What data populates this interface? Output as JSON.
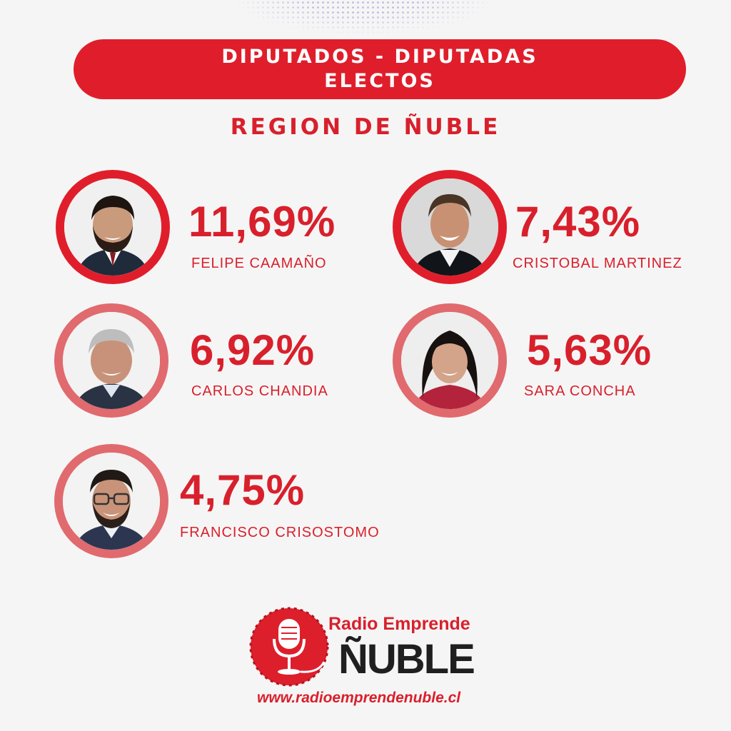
{
  "header": {
    "title_line1": "DIPUTADOS - DIPUTADAS",
    "title_line2": "ELECTOS",
    "region": "REGION DE ÑUBLE"
  },
  "candidates": [
    {
      "percentage": "11,69%",
      "name": "FELIPE CAAMAÑO"
    },
    {
      "percentage": "7,43%",
      "name": "CRISTOBAL MARTINEZ"
    },
    {
      "percentage": "6,92%",
      "name": "CARLOS CHANDIA"
    },
    {
      "percentage": "5,63%",
      "name": "SARA CONCHA"
    },
    {
      "percentage": "4,75%",
      "name": "FRANCISCO CRISOSTOMO"
    }
  ],
  "logo": {
    "title": "Radio Emprende",
    "wordmark": "ÑUBLE",
    "url": "www.radioemprendenuble.cl"
  },
  "colors": {
    "brand_red": "#e01e2b",
    "ring_light": "#e06a6e",
    "background": "#f6f5f5"
  }
}
